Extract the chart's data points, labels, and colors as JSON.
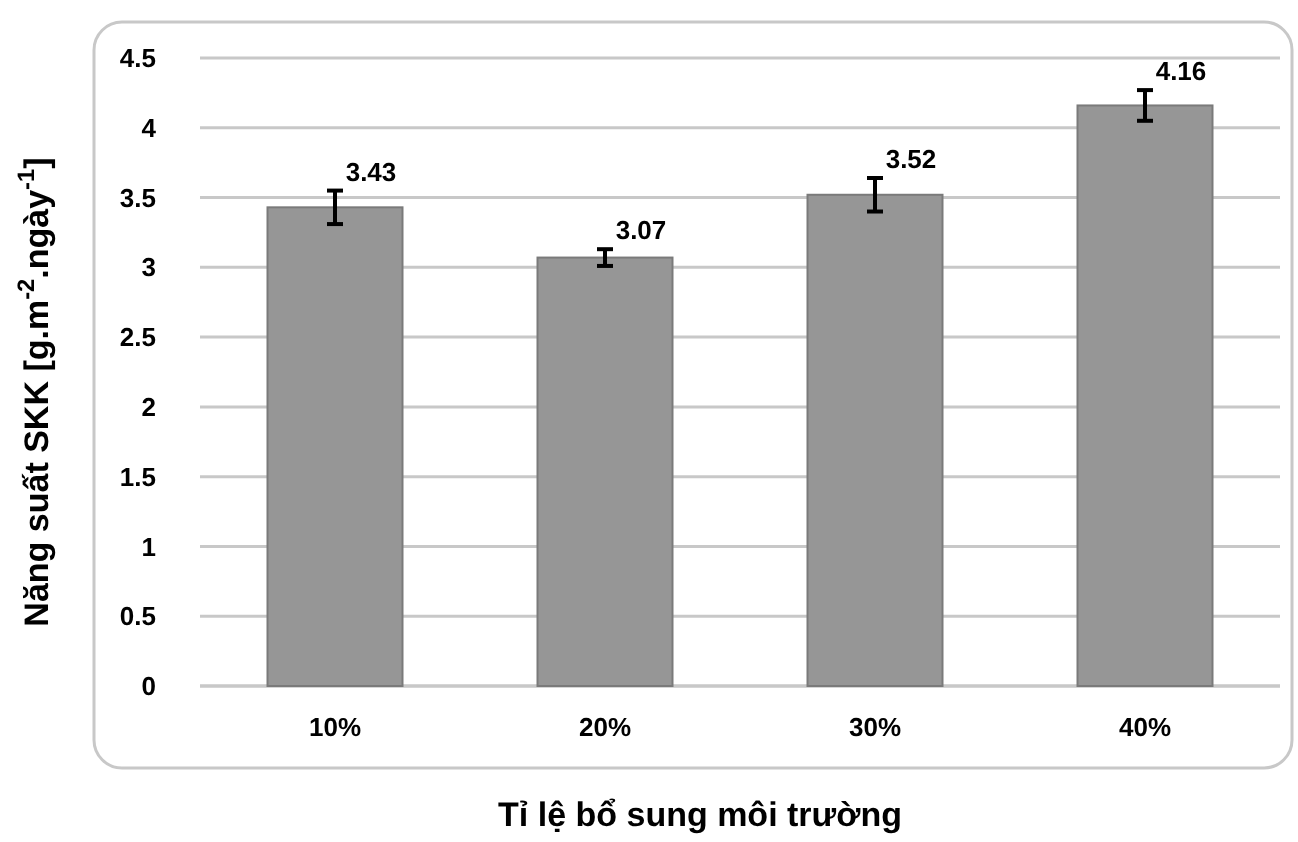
{
  "chart_data": {
    "type": "bar",
    "xlabel": "Tỉ lệ bổ sung môi trường",
    "ylabel": "Năng suất SKK [g.m$^{-2}$.ngày$^{-1}$]",
    "categories": [
      "10%",
      "20%",
      "30%",
      "40%"
    ],
    "values": [
      3.43,
      3.07,
      3.52,
      4.16
    ],
    "errors": [
      0.12,
      0.06,
      0.12,
      0.11
    ],
    "color": "#969696",
    "ylim": [
      0,
      4.5
    ],
    "yticks": [
      0,
      0.5,
      1,
      1.5,
      2,
      2.5,
      3,
      3.5,
      4,
      4.5
    ],
    "grid": "y",
    "data_labels": true
  }
}
